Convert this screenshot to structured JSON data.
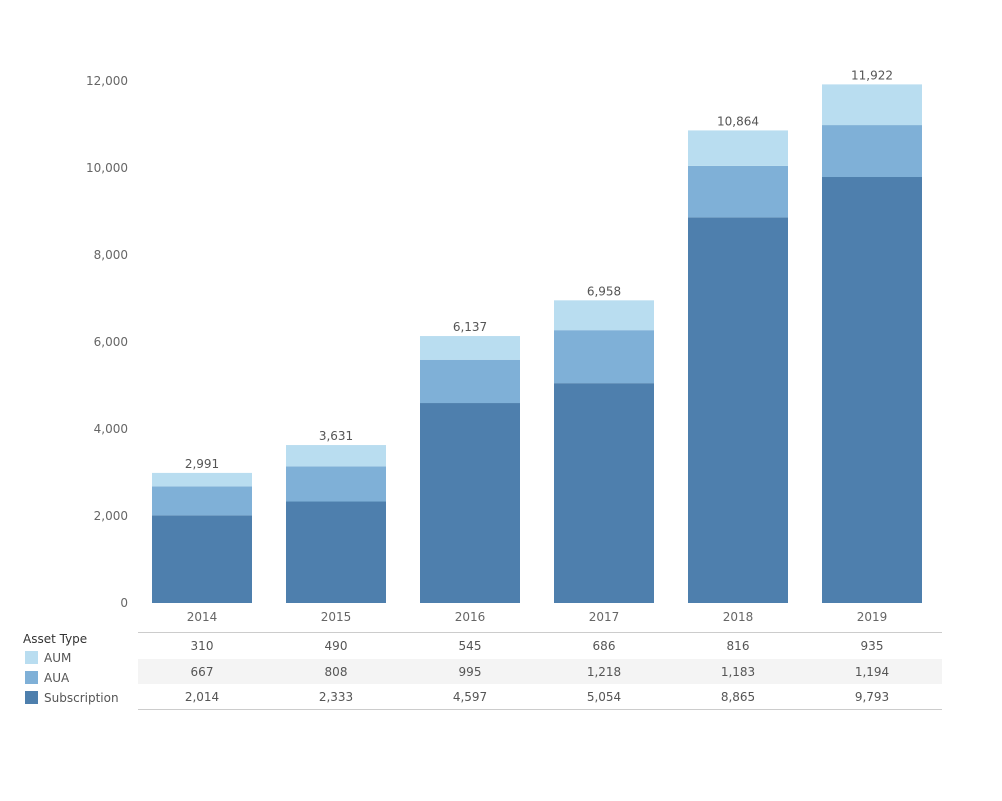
{
  "chart_data": {
    "type": "bar",
    "stacked": true,
    "categories": [
      "2014",
      "2015",
      "2016",
      "2017",
      "2018",
      "2019"
    ],
    "series": [
      {
        "name": "Subscription",
        "values": [
          2014,
          2333,
          4597,
          5054,
          8865,
          9793
        ],
        "color": "#4e7fad"
      },
      {
        "name": "AUA",
        "values": [
          667,
          808,
          995,
          1218,
          1183,
          1194
        ],
        "color": "#7fb0d7"
      },
      {
        "name": "AUM",
        "values": [
          310,
          490,
          545,
          686,
          816,
          935
        ],
        "color": "#b9ddf0"
      }
    ],
    "totals": [
      "2,991",
      "3,631",
      "6,137",
      "6,958",
      "10,864",
      "11,922"
    ],
    "yticks": [
      0,
      2000,
      4000,
      6000,
      8000,
      10000,
      12000
    ],
    "ytick_labels": [
      "0",
      "2,000",
      "4,000",
      "6,000",
      "8,000",
      "10,000",
      "12,000"
    ],
    "ylim": [
      0,
      12000
    ],
    "grid": false,
    "legend": {
      "title": "Asset Type",
      "placement": "bottom-left",
      "items": [
        "AUM",
        "AUA",
        "Subscription"
      ]
    },
    "table": {
      "rows": [
        {
          "label": "AUM",
          "cells": [
            "310",
            "490",
            "545",
            "686",
            "816",
            "935"
          ]
        },
        {
          "label": "AUA",
          "cells": [
            "667",
            "808",
            "995",
            "1,218",
            "1,183",
            "1,194"
          ]
        },
        {
          "label": "Subscription",
          "cells": [
            "2,014",
            "2,333",
            "4,597",
            "5,054",
            "8,865",
            "9,793"
          ]
        }
      ]
    }
  }
}
